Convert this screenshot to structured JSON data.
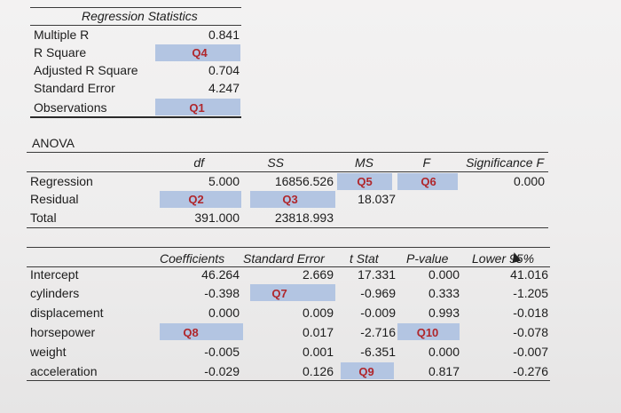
{
  "regression_statistics": {
    "title": "Regression Statistics",
    "rows": [
      {
        "label": "Multiple R",
        "value": "0.841"
      },
      {
        "label": "R Square",
        "value": "Q4"
      },
      {
        "label": "Adjusted R Square",
        "value": "0.704"
      },
      {
        "label": "Standard Error",
        "value": "4.247"
      },
      {
        "label": "Observations",
        "value": "Q1"
      }
    ]
  },
  "anova": {
    "title": "ANOVA",
    "headers": {
      "df": "df",
      "ss": "SS",
      "ms": "MS",
      "f": "F",
      "sig": "Significance F"
    },
    "rows": [
      {
        "label": "Regression",
        "df": "5.000",
        "ss": "16856.526",
        "ms": "Q5",
        "f": "Q6",
        "sig": "0.000"
      },
      {
        "label": "Residual",
        "df": "Q2",
        "ss": "Q3",
        "ms": "18.037",
        "f": "",
        "sig": ""
      },
      {
        "label": "Total",
        "df": "391.000",
        "ss": "23818.993",
        "ms": "",
        "f": "",
        "sig": ""
      }
    ]
  },
  "coefficients": {
    "headers": {
      "coef": "Coefficients",
      "se": "Standard Error",
      "t": "t Stat",
      "p": "P-value",
      "lower": "Lower 95%"
    },
    "rows": [
      {
        "label": "Intercept",
        "coef": "46.264",
        "se": "2.669",
        "t": "17.331",
        "p": "0.000",
        "lower": "41.016"
      },
      {
        "label": "cylinders",
        "coef": "-0.398",
        "se": "Q7",
        "t": "-0.969",
        "p": "0.333",
        "lower": "-1.205"
      },
      {
        "label": "displacement",
        "coef": "0.000",
        "se": "0.009",
        "t": "-0.009",
        "p": "0.993",
        "lower": "-0.018"
      },
      {
        "label": "horsepower",
        "coef": "Q8",
        "se": "0.017",
        "t": "-2.716",
        "p": "Q10",
        "lower": "-0.078"
      },
      {
        "label": "weight",
        "coef": "-0.005",
        "se": "0.001",
        "t": "-6.351",
        "p": "0.000",
        "lower": "-0.007"
      },
      {
        "label": "acceleration",
        "coef": "-0.029",
        "se": "0.126",
        "t": "Q9",
        "p": "0.817",
        "lower": "-0.276"
      }
    ]
  },
  "colors": {
    "highlight": "#b3c5e2",
    "question": "#b0262b"
  }
}
